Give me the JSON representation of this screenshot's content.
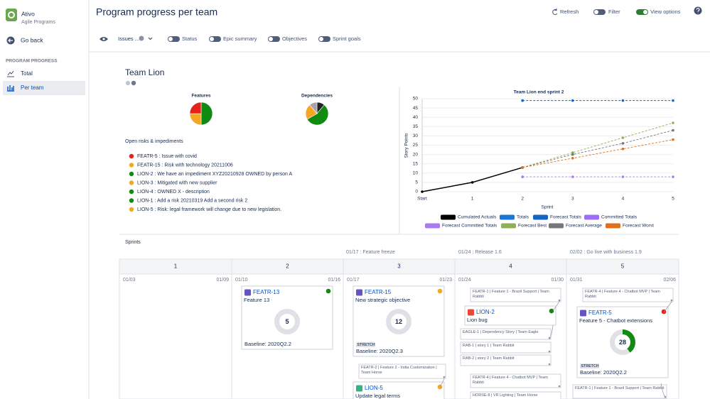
{
  "sidebar": {
    "app_name": "Ativo",
    "app_subtitle": "Agile Programs",
    "back": "Go back",
    "section": "PROGRAM PROGRESS",
    "nav": [
      "Total",
      "Per team"
    ]
  },
  "header": {
    "title": "Program progress per team",
    "actions": [
      "Refresh",
      "Filter",
      "View options"
    ]
  },
  "toolbar": {
    "issues": "Issues ...",
    "toggles": [
      "Status",
      "Epic summary",
      "Objectives",
      "Sprint goals"
    ]
  },
  "team": {
    "name": "Team Lion"
  },
  "features_chart": {
    "type": "pie",
    "title": "Features",
    "values": [
      2,
      1,
      1
    ],
    "colors": [
      "#118a11",
      "#f5a623",
      "#e8201a"
    ]
  },
  "dependencies_chart": {
    "type": "pie",
    "title": "Dependencies",
    "values": [
      1,
      5,
      2,
      1
    ],
    "colors": [
      "#222222",
      "#118a11",
      "#f5a623",
      "#a5a5a5"
    ]
  },
  "risks": {
    "title": "Open risks & impediments",
    "items": [
      {
        "text": "FEATR-5 : Issue with covid",
        "color": "#e8201a"
      },
      {
        "text": "FEATR-15 : Risk with technology 20211006",
        "color": "#f5a623"
      },
      {
        "text": "LION-2 : We have an impediment XYZ20210928 OWNED by person A",
        "color": "#118a11"
      },
      {
        "text": "LION-3 : Mitigated with new supplier",
        "color": "#f5a623"
      },
      {
        "text": "LION-4 : OWNED X - description",
        "color": "#118a11"
      },
      {
        "text": "LION-1 : Add a risk 20210319 Add a second risk 2",
        "color": "#118a11"
      },
      {
        "text": "LION-5 : Risk: legal framework will change due to new legislation.",
        "color": "#f5a623"
      }
    ]
  },
  "burnup": {
    "type": "line",
    "title": "Team Lion end sprint 2",
    "x_label": "Sprint",
    "y_label": "Story Points",
    "categories": [
      "Start",
      "1",
      "2",
      "3",
      "4",
      "5"
    ],
    "ylim": [
      0,
      50
    ],
    "yticks": [
      0,
      5,
      10,
      15,
      20,
      25,
      30,
      35,
      40,
      45,
      50
    ],
    "grid": true,
    "series": [
      {
        "name": "Cumulated Actuals",
        "color": "#000000",
        "dashed": false,
        "values": [
          0,
          5,
          13,
          null,
          null,
          null
        ]
      },
      {
        "name": "Totals",
        "color": "#1976d2",
        "dashed": false,
        "values": [
          null,
          null,
          49,
          null,
          null,
          null
        ]
      },
      {
        "name": "Forecast Totals",
        "color": "#1565c0",
        "dashed": true,
        "values": [
          null,
          null,
          49,
          49,
          49,
          49
        ]
      },
      {
        "name": "Committed Totals",
        "color": "#a06ef5",
        "dashed": false,
        "values": [
          null,
          null,
          8,
          null,
          null,
          null
        ]
      },
      {
        "name": "Forecast Committed Totals",
        "color": "#a77cf2",
        "dashed": true,
        "values": [
          null,
          null,
          8,
          8,
          8,
          8
        ]
      },
      {
        "name": "Forecast Best",
        "color": "#8db255",
        "dashed": true,
        "values": [
          null,
          null,
          13,
          21,
          29,
          37
        ]
      },
      {
        "name": "Forecast Average",
        "color": "#777777",
        "dashed": true,
        "values": [
          null,
          null,
          13,
          20,
          26,
          33
        ]
      },
      {
        "name": "Forecast Worst",
        "color": "#e0701e",
        "dashed": true,
        "values": [
          null,
          null,
          13,
          18,
          23,
          28
        ]
      }
    ]
  },
  "sprints": {
    "title": "Sprints",
    "milestones": [
      "01/17 : Feature freeze",
      "01/24 : Release 1.6",
      "02/02 : Go live with business 1.9"
    ],
    "columns": [
      {
        "number": "1",
        "start": "01/03",
        "end": "01/09",
        "items": []
      },
      {
        "number": "2",
        "start": "01/10",
        "end": "01/16",
        "items": [
          {
            "kind": "card",
            "key": "FEATR-13",
            "icon_color": "#6554c0",
            "status_color": "#118a11",
            "title": "Feature 13",
            "count": 5,
            "progress": 0,
            "baseline": "Baseline: 2020Q2.2"
          }
        ]
      },
      {
        "number": "3",
        "start": "01/17",
        "end": "01/23",
        "items": [
          {
            "kind": "card",
            "key": "FEATR-15",
            "icon_color": "#6554c0",
            "status_color": "#f5a623",
            "title": "New strategic objective",
            "count": 12,
            "progress": 0,
            "tag": "STRETCH",
            "baseline": "Baseline: 2020Q2.3"
          },
          {
            "kind": "dependency",
            "text": "FEATR-2 | Feature 2 - India Customization | Team Horse"
          },
          {
            "kind": "card",
            "key": "LION-5",
            "icon_color": "#36b37e",
            "status_color": "#f5a623",
            "title": "Update legal terms"
          }
        ]
      },
      {
        "number": "4",
        "start": "01/24",
        "end": "01/30",
        "items": [
          {
            "kind": "dependency",
            "text": "FEATR-1 | Feature 1 - Brazil Support | Team Rabbit"
          },
          {
            "kind": "card",
            "key": "LION-2",
            "icon_color": "#e5493a",
            "status_color": "#118a11",
            "title": "Lion bug"
          },
          {
            "kind": "dependency",
            "text": "EAGLE-1 | Dependency Story | Team Eagle"
          },
          {
            "kind": "dependency",
            "text": "RAB-1 | story 1 | Team Rabbit"
          },
          {
            "kind": "dependency",
            "text": "RAB-2 | story 2 | Team Rabbit"
          },
          {
            "kind": "dependency",
            "text": "FEATR-4 | Feature 4 - Chatbot MVP | Team Rabbit"
          },
          {
            "kind": "dependency",
            "text": "HORSE-8 | VR Lighting | Team Horse"
          }
        ]
      },
      {
        "number": "5",
        "start": "01/31",
        "end": "02/06",
        "items": [
          {
            "kind": "dependency",
            "text": "FEATR-4 | Feature 4 - Chatbot MVP | Team Rabbit"
          },
          {
            "kind": "card",
            "key": "FEATR-5",
            "icon_color": "#6554c0",
            "status_color": "#e8201a",
            "title": "Feature 5 - Chatbot extensions",
            "count": 28,
            "progress": 40,
            "tag": "STRETCH",
            "baseline": "Baseline: 2020Q2.2"
          },
          {
            "kind": "dependency",
            "text": "FEATR-1 | Feature 1 - Brazil Support | Team Rabbit"
          }
        ]
      }
    ]
  }
}
